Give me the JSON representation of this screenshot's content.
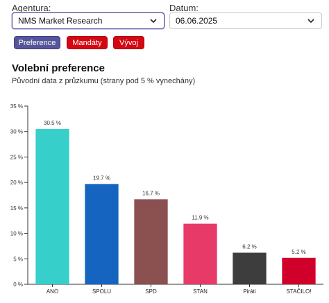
{
  "filters": {
    "agency_label": "Agentura:",
    "agency_value": "NMS Market Research",
    "date_label": "Datum:",
    "date_value": "06.06.2025"
  },
  "tabs": {
    "preference": "Preference",
    "mandates": "Mandáty",
    "trend": "Vývoj"
  },
  "colors": {
    "accent": "#55559a",
    "red": "#d40814"
  },
  "chart_data": {
    "type": "bar",
    "title": "Volební preference",
    "subtitle": "Původní data z průzkumu (strany pod 5 % vynechány)",
    "categories": [
      "ANO",
      "SPOLU",
      "SPD",
      "STAN",
      "Piráti",
      "STAČILO!"
    ],
    "values": [
      30.5,
      19.7,
      16.7,
      11.9,
      6.2,
      5.2
    ],
    "value_labels": [
      "30.5 %",
      "19.7 %",
      "16.7 %",
      "11.9 %",
      "6.2 %",
      "5.2 %"
    ],
    "bar_colors": [
      "#36cfc9",
      "#1565c0",
      "#8b5050",
      "#e83a68",
      "#3d3d3d",
      "#d1002a"
    ],
    "ylim": [
      0,
      35
    ],
    "yticks": [
      0,
      5,
      10,
      15,
      20,
      25,
      30,
      35
    ],
    "ytick_labels": [
      "0 %",
      "5 %",
      "10 %",
      "15 %",
      "20 %",
      "25 %",
      "30 %",
      "35 %"
    ],
    "grid": false,
    "legend": "none"
  }
}
